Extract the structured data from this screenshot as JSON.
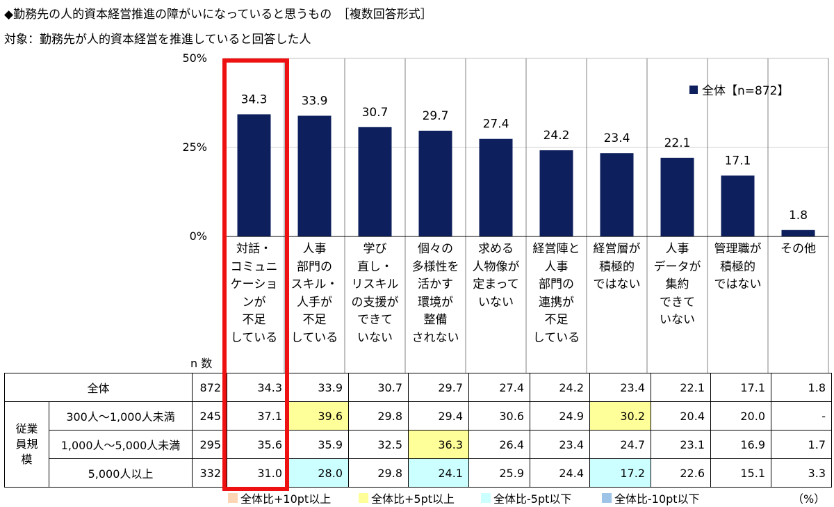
{
  "title": "◆勤務先の人的資本経営推進の障がいになっていると思うもの　［複数回答形式］",
  "subtitle": "対象：勤務先が人的資本経営を推進していると回答した人",
  "chart_data": {
    "type": "bar",
    "ylim": [
      0,
      50
    ],
    "yticks": [
      "0%",
      "25%",
      "50%"
    ],
    "ytick_values": [
      0,
      25,
      50
    ],
    "legend": "全体【n=872】",
    "categories": [
      [
        "対話・",
        "コミュニ",
        "ケーショ",
        "ンが",
        "不足",
        "している"
      ],
      [
        "人事",
        "部門の",
        "スキル・",
        "人手が",
        "不足",
        "している"
      ],
      [
        "学び",
        "直し・",
        "リスキル",
        "の支援が",
        "できて",
        "いない"
      ],
      [
        "個々の",
        "多様性を",
        "活かす",
        "環境が",
        "整備",
        "されない"
      ],
      [
        "求める",
        "人物像が",
        "定まって",
        "いない"
      ],
      [
        "経営陣と",
        "人事",
        "部門の",
        "連携が",
        "不足",
        "している"
      ],
      [
        "経営層が",
        "積極的",
        "ではない"
      ],
      [
        "人事",
        "データが",
        "集約",
        "できて",
        "いない"
      ],
      [
        "管理職が",
        "積極的",
        "ではない"
      ],
      [
        "その他"
      ]
    ],
    "values": [
      34.3,
      33.9,
      30.7,
      29.7,
      27.4,
      24.2,
      23.4,
      22.1,
      17.1,
      1.8
    ],
    "value_labels": [
      "34.3",
      "33.9",
      "30.7",
      "29.7",
      "27.4",
      "24.2",
      "23.4",
      "22.1",
      "17.1",
      "1.8"
    ]
  },
  "table": {
    "n_header": "n 数",
    "group_label": "従業員規模",
    "rows": [
      {
        "label": "全体",
        "n": "872",
        "values": [
          "34.3",
          "33.9",
          "30.7",
          "29.7",
          "27.4",
          "24.2",
          "23.4",
          "22.1",
          "17.1",
          "1.8"
        ]
      },
      {
        "label": "300人～1,000人未満",
        "n": "245",
        "values": [
          "37.1",
          "39.6",
          "29.8",
          "29.4",
          "30.6",
          "24.9",
          "30.2",
          "20.4",
          "20.0",
          "-"
        ]
      },
      {
        "label": "1,000人～5,000人未満",
        "n": "295",
        "values": [
          "35.6",
          "35.9",
          "32.5",
          "36.3",
          "26.4",
          "23.4",
          "24.7",
          "23.1",
          "16.9",
          "1.7"
        ]
      },
      {
        "label": "5,000人以上",
        "n": "332",
        "values": [
          "31.0",
          "28.0",
          "29.8",
          "24.1",
          "25.9",
          "24.4",
          "17.2",
          "22.6",
          "15.1",
          "3.3"
        ]
      }
    ]
  },
  "footer": {
    "keys": [
      {
        "label": "全体比+10pt以上",
        "color": "#fcd5b4"
      },
      {
        "label": "全体比+5pt以上",
        "color": "#ffff99"
      },
      {
        "label": "全体比-5pt以下",
        "color": "#ccffff"
      },
      {
        "label": "全体比-10pt以下",
        "color": "#9dc3e6"
      }
    ],
    "unit": "（%）"
  },
  "colors": {
    "bar": "#0d1f5c",
    "highlight_frame": "#ee1111",
    "grid": "#d0d0d0"
  }
}
